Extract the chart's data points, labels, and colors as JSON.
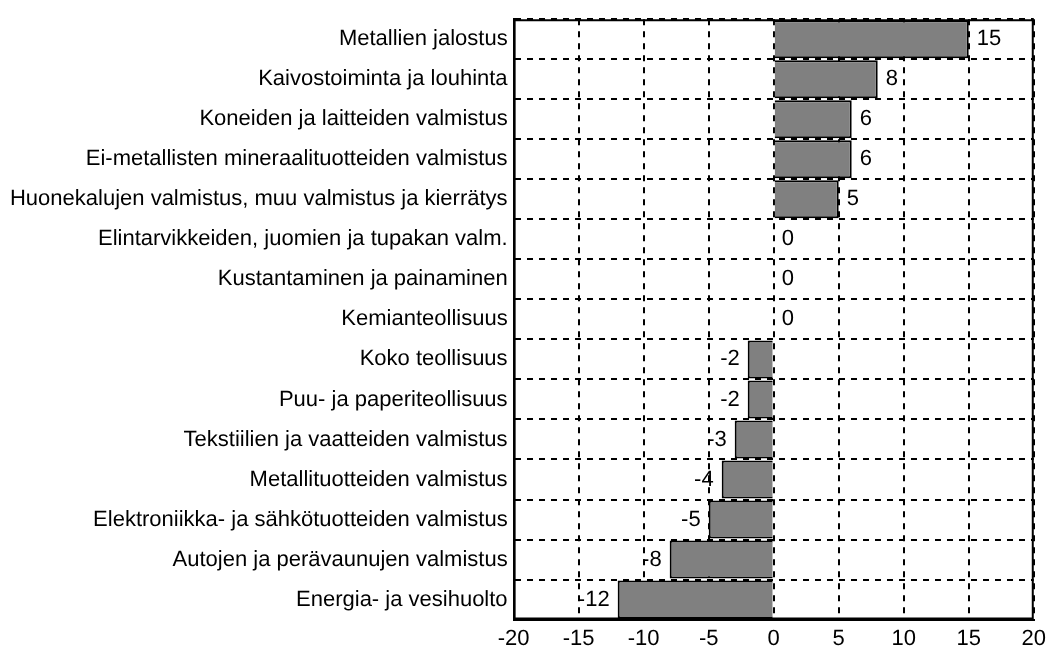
{
  "chart_data": {
    "type": "bar",
    "orientation": "horizontal",
    "categories": [
      "Metallien jalostus",
      "Kaivostoiminta ja louhinta",
      "Koneiden ja laitteiden valmistus",
      "Ei-metallisten mineraalituotteiden valmistus",
      "Huonekalujen valmistus, muu valmistus ja kierrätys",
      "Elintarvikkeiden, juomien ja tupakan valm.",
      "Kustantaminen ja painaminen",
      "Kemianteollisuus",
      "Koko teollisuus",
      "Puu- ja paperiteollisuus",
      "Tekstiilien ja vaatteiden valmistus",
      "Metallituotteiden valmistus",
      "Elektroniikka- ja sähkötuotteiden valmistus",
      "Autojen ja perävaunujen valmistus",
      "Energia- ja vesihuolto"
    ],
    "values": [
      15,
      8,
      6,
      6,
      5,
      0,
      0,
      0,
      -2,
      -2,
      -3,
      -4,
      -5,
      -8,
      -12
    ],
    "color": "#808080",
    "xlim": [
      -20,
      20
    ],
    "xticks": [
      -20,
      -15,
      -10,
      -5,
      0,
      5,
      10,
      15,
      20
    ],
    "grid": true,
    "data_labels": true,
    "legend": false
  }
}
